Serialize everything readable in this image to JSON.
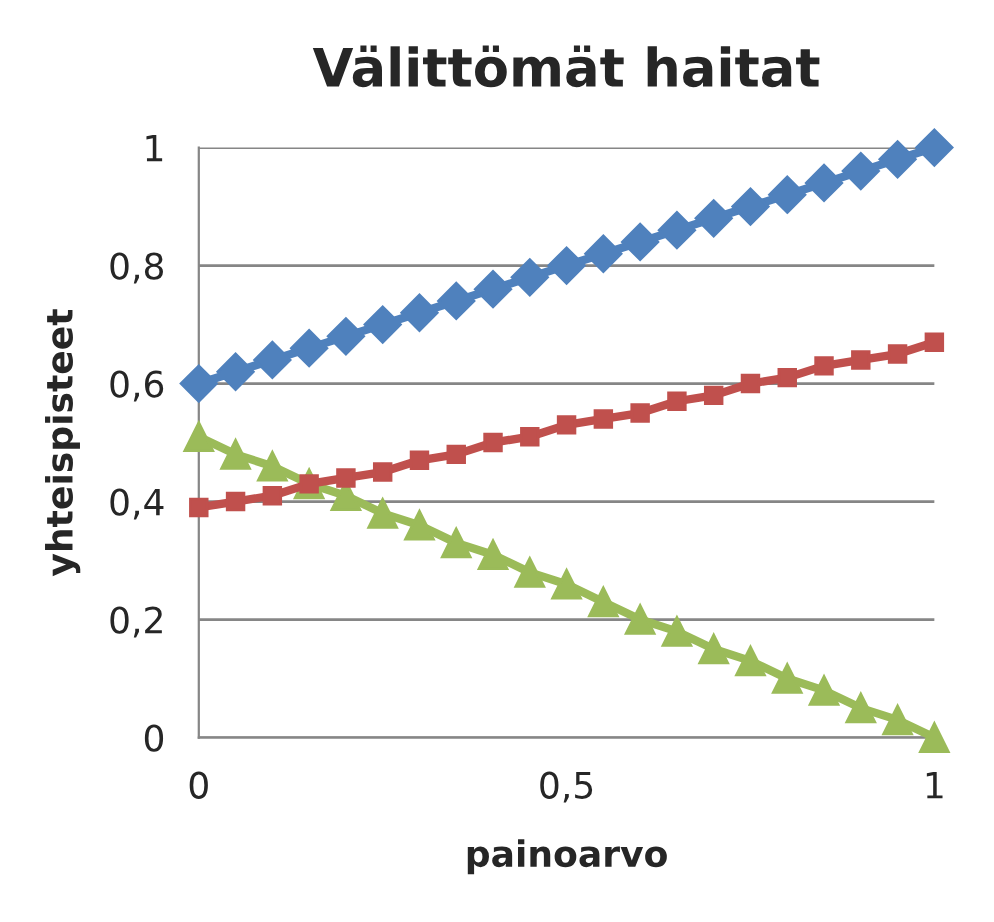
{
  "chart_data": {
    "type": "line",
    "title": "Välittömät haitat",
    "xlabel": "painoarvo",
    "ylabel": "yhteispisteet",
    "x": [
      0,
      0.05,
      0.1,
      0.15,
      0.2,
      0.25,
      0.3,
      0.35,
      0.4,
      0.45,
      0.5,
      0.55,
      0.6,
      0.65,
      0.7,
      0.75,
      0.8,
      0.85,
      0.9,
      0.95,
      1
    ],
    "series": [
      {
        "color": "#4f81bd",
        "marker": "diamond",
        "values": [
          0.6,
          0.62,
          0.64,
          0.66,
          0.68,
          0.7,
          0.72,
          0.74,
          0.76,
          0.78,
          0.8,
          0.82,
          0.84,
          0.86,
          0.88,
          0.9,
          0.92,
          0.94,
          0.96,
          0.98,
          1.0
        ]
      },
      {
        "color": "#c0504d",
        "marker": "square",
        "values": [
          0.39,
          0.4,
          0.41,
          0.43,
          0.44,
          0.45,
          0.47,
          0.48,
          0.5,
          0.51,
          0.53,
          0.54,
          0.55,
          0.57,
          0.58,
          0.6,
          0.61,
          0.63,
          0.64,
          0.65,
          0.67
        ]
      },
      {
        "color": "#9bbb59",
        "marker": "triangle",
        "values": [
          0.51,
          0.48,
          0.46,
          0.43,
          0.41,
          0.38,
          0.36,
          0.33,
          0.31,
          0.28,
          0.26,
          0.23,
          0.2,
          0.18,
          0.15,
          0.13,
          0.1,
          0.08,
          0.05,
          0.03,
          0.0
        ]
      }
    ],
    "xlim": [
      0,
      1
    ],
    "xticks": [
      0,
      {
        "value": 0.5,
        "label": "0,5"
      },
      1
    ],
    "ylim": [
      0,
      1
    ],
    "yticks": [
      0,
      {
        "value": 0.2,
        "label": "0,2"
      },
      {
        "value": 0.4,
        "label": "0,4"
      },
      {
        "value": 0.6,
        "label": "0,6"
      },
      {
        "value": 0.8,
        "label": "0,8"
      },
      1
    ],
    "grid": "y",
    "legend": false,
    "line_style": "solid"
  }
}
